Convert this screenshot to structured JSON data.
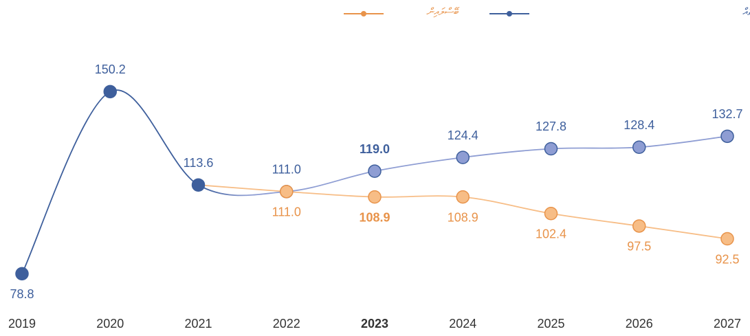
{
  "chart_data": {
    "type": "line",
    "categories": [
      "2019",
      "2020",
      "2021",
      "2022",
      "2023",
      "2024",
      "2025",
      "2026",
      "2027"
    ],
    "highlight_index": 4,
    "projection_start": 3,
    "ylim": [
      70,
      160
    ],
    "series": [
      {
        "name": "ފުރިހަމަ ބަޖެޓް އާއި ހަރަދުކުރުމުގެ ހިސާބުތައް",
        "color": "#3e5f9c",
        "projection_color": "#8e9dd3",
        "values": [
          78.8,
          150.2,
          113.6,
          111.0,
          119.0,
          124.4,
          127.8,
          128.4,
          132.7
        ],
        "value_labels": [
          "78.8",
          "150.2",
          "113.6",
          "111.0",
          "119.0",
          "124.4",
          "127.8",
          "128.4",
          "132.7"
        ]
      },
      {
        "name": "ބޭސްލައިން",
        "color": "#e8934a",
        "projection_color": "#f7bd86",
        "values": [
          null,
          null,
          113.6,
          111.0,
          108.9,
          108.9,
          102.4,
          97.5,
          92.5
        ],
        "value_labels": [
          null,
          null,
          null,
          "111.0",
          "108.9",
          "108.9",
          "102.4",
          "97.5",
          "92.5"
        ]
      }
    ]
  }
}
